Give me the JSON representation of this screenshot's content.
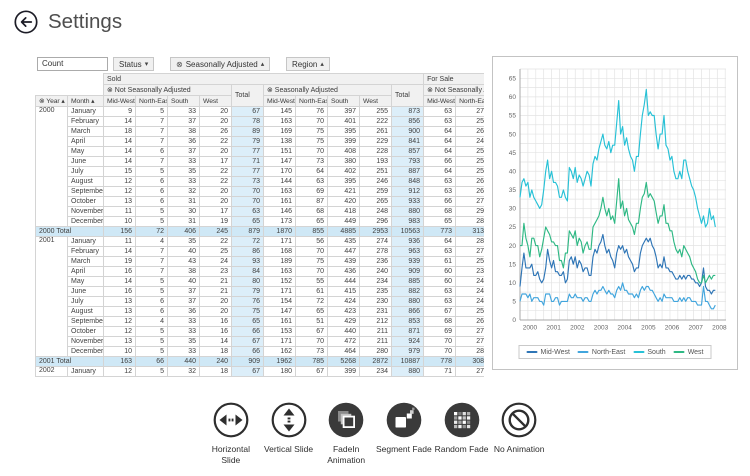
{
  "header": {
    "title": "Settings"
  },
  "icons": {
    "remove": "⊗",
    "sort_asc": "▴",
    "dropdown": "▾"
  },
  "pivot": {
    "measure_label": "Count",
    "filters": [
      {
        "label": "Status",
        "arrow": "▾",
        "removable": false
      },
      {
        "label": "Seasonally Adjusted",
        "arrow": "▴",
        "removable": true
      },
      {
        "label": "Region",
        "arrow": "▴",
        "removable": false
      }
    ],
    "row_headers": {
      "year": "Year",
      "month": "Month"
    },
    "col_groups": [
      "Sold",
      "For Sale"
    ],
    "subgroups": [
      "Not Seasonally Adjusted",
      "Seasonally Adjusted",
      "Not Seasonally Adjusted"
    ],
    "total_label": "Total",
    "regions": [
      "Mid-West",
      "North-East",
      "South",
      "West"
    ],
    "rows": [
      {
        "type": "year-start",
        "year": "2000",
        "span": 12,
        "month": "January",
        "values": [
          9,
          5,
          33,
          20,
          67,
          145,
          76,
          397,
          255,
          873,
          63,
          27
        ]
      },
      {
        "type": "data",
        "month": "February",
        "values": [
          14,
          7,
          37,
          20,
          78,
          163,
          70,
          401,
          222,
          856,
          63,
          25
        ]
      },
      {
        "type": "data",
        "month": "March",
        "values": [
          18,
          7,
          38,
          26,
          89,
          169,
          75,
          395,
          261,
          900,
          64,
          26
        ]
      },
      {
        "type": "data",
        "month": "April",
        "values": [
          14,
          7,
          36,
          22,
          79,
          138,
          75,
          399,
          229,
          841,
          64,
          24
        ]
      },
      {
        "type": "data",
        "month": "May",
        "values": [
          14,
          6,
          37,
          20,
          77,
          151,
          70,
          408,
          228,
          857,
          64,
          25
        ]
      },
      {
        "type": "data",
        "month": "June",
        "values": [
          14,
          7,
          33,
          17,
          71,
          147,
          73,
          380,
          193,
          793,
          66,
          25
        ]
      },
      {
        "type": "data",
        "month": "July",
        "values": [
          15,
          5,
          35,
          22,
          77,
          170,
          64,
          402,
          251,
          887,
          64,
          25
        ]
      },
      {
        "type": "data",
        "month": "August",
        "values": [
          12,
          6,
          33,
          22,
          73,
          144,
          63,
          395,
          246,
          848,
          63,
          26
        ]
      },
      {
        "type": "data",
        "month": "September",
        "values": [
          12,
          6,
          32,
          20,
          70,
          163,
          69,
          421,
          259,
          912,
          63,
          26
        ]
      },
      {
        "type": "data",
        "month": "October",
        "values": [
          13,
          6,
          31,
          20,
          70,
          161,
          87,
          420,
          265,
          933,
          66,
          27
        ]
      },
      {
        "type": "data",
        "month": "November",
        "values": [
          11,
          5,
          30,
          17,
          63,
          146,
          68,
          418,
          248,
          880,
          68,
          29
        ]
      },
      {
        "type": "data",
        "month": "December",
        "values": [
          10,
          5,
          31,
          19,
          65,
          173,
          65,
          449,
          296,
          983,
          65,
          28
        ]
      },
      {
        "type": "total",
        "label": "2000 Total",
        "values": [
          156,
          72,
          406,
          245,
          879,
          1870,
          855,
          4885,
          2953,
          10563,
          773,
          313
        ]
      },
      {
        "type": "year-start",
        "year": "2001",
        "span": 12,
        "month": "January",
        "values": [
          11,
          4,
          35,
          22,
          72,
          171,
          56,
          435,
          274,
          936,
          64,
          28
        ]
      },
      {
        "type": "data",
        "month": "February",
        "values": [
          14,
          7,
          40,
          25,
          86,
          168,
          70,
          447,
          278,
          963,
          63,
          27
        ]
      },
      {
        "type": "data",
        "month": "March",
        "values": [
          19,
          7,
          43,
          24,
          93,
          189,
          75,
          439,
          236,
          939,
          61,
          25
        ]
      },
      {
        "type": "data",
        "month": "April",
        "values": [
          16,
          7,
          38,
          23,
          84,
          163,
          70,
          436,
          240,
          909,
          60,
          23
        ]
      },
      {
        "type": "data",
        "month": "May",
        "values": [
          14,
          5,
          40,
          21,
          80,
          152,
          55,
          444,
          234,
          885,
          60,
          24
        ]
      },
      {
        "type": "data",
        "month": "June",
        "values": [
          16,
          5,
          37,
          21,
          79,
          171,
          61,
          415,
          235,
          882,
          63,
          24
        ]
      },
      {
        "type": "data",
        "month": "July",
        "values": [
          13,
          6,
          37,
          20,
          76,
          154,
          72,
          424,
          230,
          880,
          63,
          24
        ]
      },
      {
        "type": "data",
        "month": "August",
        "values": [
          13,
          6,
          36,
          20,
          75,
          147,
          65,
          423,
          231,
          866,
          67,
          25
        ]
      },
      {
        "type": "data",
        "month": "September",
        "values": [
          12,
          4,
          33,
          16,
          65,
          161,
          51,
          429,
          212,
          853,
          68,
          26
        ]
      },
      {
        "type": "data",
        "month": "October",
        "values": [
          12,
          5,
          33,
          16,
          66,
          153,
          67,
          440,
          211,
          871,
          69,
          27
        ]
      },
      {
        "type": "data",
        "month": "November",
        "values": [
          13,
          5,
          35,
          14,
          67,
          171,
          70,
          472,
          211,
          924,
          70,
          27
        ]
      },
      {
        "type": "data",
        "month": "December",
        "values": [
          10,
          5,
          33,
          18,
          66,
          162,
          73,
          464,
          280,
          979,
          70,
          28
        ]
      },
      {
        "type": "total",
        "label": "2001 Total",
        "values": [
          163,
          66,
          440,
          240,
          909,
          1962,
          785,
          5268,
          2872,
          10887,
          778,
          308
        ]
      },
      {
        "type": "year-start",
        "year": "2002",
        "span": 1,
        "month": "January",
        "values": [
          12,
          5,
          32,
          18,
          67,
          180,
          67,
          399,
          234,
          880,
          71,
          27
        ]
      }
    ]
  },
  "chart_data": {
    "type": "line",
    "title": "",
    "xlabel": "",
    "ylabel": "",
    "x_start_year": 2000,
    "x_tick_labels": [
      "2000",
      "2001",
      "2002",
      "2003",
      "2004",
      "2005",
      "2006",
      "2007",
      "2008"
    ],
    "y_ticks": [
      0,
      5,
      10,
      15,
      20,
      25,
      30,
      35,
      40,
      45,
      50,
      55,
      60,
      65
    ],
    "ylim": [
      0,
      67.5
    ],
    "xlim": [
      2000,
      2008.7
    ],
    "grid": true,
    "legend_position": "bottom",
    "series": [
      {
        "name": "Mid-West",
        "color": "#2e75b6",
        "values": [
          9,
          14,
          18,
          14,
          14,
          14,
          15,
          12,
          12,
          13,
          11,
          10,
          11,
          14,
          19,
          16,
          14,
          16,
          13,
          13,
          12,
          12,
          13,
          10,
          11,
          16,
          17,
          15,
          17,
          14,
          16,
          15,
          13,
          14,
          14,
          12,
          12,
          17,
          19,
          18,
          20,
          21,
          23,
          20,
          18,
          19,
          17,
          16,
          14,
          18,
          20,
          19,
          20,
          18,
          19,
          17,
          16,
          15,
          13,
          14,
          14,
          18,
          20,
          21,
          22,
          21,
          22,
          20,
          19,
          17,
          14,
          15,
          14,
          17,
          14,
          14,
          13,
          13,
          12,
          11,
          11,
          12,
          11,
          12,
          11,
          12,
          12,
          11,
          11,
          10,
          10,
          9,
          10,
          14,
          9,
          8,
          8,
          7,
          8,
          8
        ]
      },
      {
        "name": "North-East",
        "color": "#41a5dd",
        "values": [
          5,
          7,
          7,
          7,
          6,
          7,
          5,
          6,
          6,
          6,
          5,
          5,
          4,
          7,
          7,
          7,
          5,
          5,
          6,
          6,
          4,
          5,
          5,
          5,
          5,
          7,
          6,
          6,
          7,
          6,
          6,
          6,
          5,
          6,
          6,
          5,
          5,
          7,
          8,
          7,
          8,
          8,
          9,
          8,
          7,
          8,
          7,
          7,
          6,
          8,
          9,
          8,
          10,
          8,
          8,
          7,
          7,
          7,
          6,
          7,
          6,
          8,
          9,
          8,
          9,
          9,
          8,
          8,
          7,
          6,
          5,
          6,
          5,
          7,
          6,
          6,
          6,
          6,
          5,
          5,
          5,
          6,
          5,
          6,
          5,
          6,
          6,
          5,
          5,
          5,
          4,
          4,
          4,
          9,
          5,
          5,
          4,
          3,
          3,
          4
        ]
      },
      {
        "name": "South",
        "color": "#27c1d6",
        "values": [
          33,
          37,
          38,
          36,
          37,
          33,
          35,
          33,
          32,
          31,
          30,
          31,
          35,
          40,
          43,
          38,
          40,
          37,
          37,
          36,
          33,
          33,
          35,
          33,
          32,
          41,
          40,
          38,
          41,
          37,
          39,
          38,
          36,
          38,
          40,
          39,
          36,
          42,
          44,
          43,
          46,
          48,
          50,
          47,
          46,
          48,
          45,
          47,
          47,
          53,
          59,
          50,
          52,
          47,
          49,
          46,
          44,
          43,
          40,
          44,
          44,
          50,
          55,
          58,
          62,
          55,
          56,
          55,
          55,
          50,
          46,
          50,
          50,
          55,
          47,
          46,
          43,
          44,
          40,
          38,
          38,
          40,
          38,
          43,
          43,
          40,
          38,
          36,
          35,
          33,
          30,
          28,
          26,
          28,
          25,
          26,
          30,
          27,
          28,
          25
        ]
      },
      {
        "name": "West",
        "color": "#2eb884",
        "values": [
          20,
          20,
          26,
          22,
          20,
          17,
          22,
          22,
          20,
          20,
          17,
          19,
          22,
          25,
          24,
          23,
          21,
          21,
          20,
          20,
          16,
          16,
          14,
          18,
          18,
          24,
          23,
          22,
          24,
          20,
          22,
          21,
          18,
          20,
          21,
          19,
          19,
          25,
          26,
          27,
          28,
          30,
          33,
          30,
          28,
          30,
          27,
          28,
          26,
          32,
          38,
          30,
          32,
          28,
          30,
          27,
          26,
          25,
          23,
          26,
          26,
          30,
          33,
          34,
          37,
          33,
          34,
          33,
          32,
          29,
          26,
          28,
          28,
          31,
          26,
          26,
          24,
          24,
          21,
          19,
          18,
          19,
          17,
          20,
          19,
          18,
          17,
          15,
          14,
          13,
          11,
          10,
          10,
          12,
          10,
          11,
          12,
          11,
          12,
          12
        ]
      }
    ]
  },
  "animations": [
    {
      "id": "horizontal-slide",
      "label": "Horizontal Slide"
    },
    {
      "id": "vertical-slide",
      "label": "Vertical Slide"
    },
    {
      "id": "fadein-animation",
      "label": "FadeIn Animation"
    },
    {
      "id": "segment-fade",
      "label": "Segment Fade"
    },
    {
      "id": "random-fade",
      "label": "Random Fade"
    },
    {
      "id": "no-animation",
      "label": "No Animation"
    }
  ],
  "colors": {
    "total_column_bg": "#dceef9",
    "total_row_bg": "#cfe8f6",
    "header_bg": "#f1f1f1",
    "grid_border": "#d4d4d4"
  }
}
